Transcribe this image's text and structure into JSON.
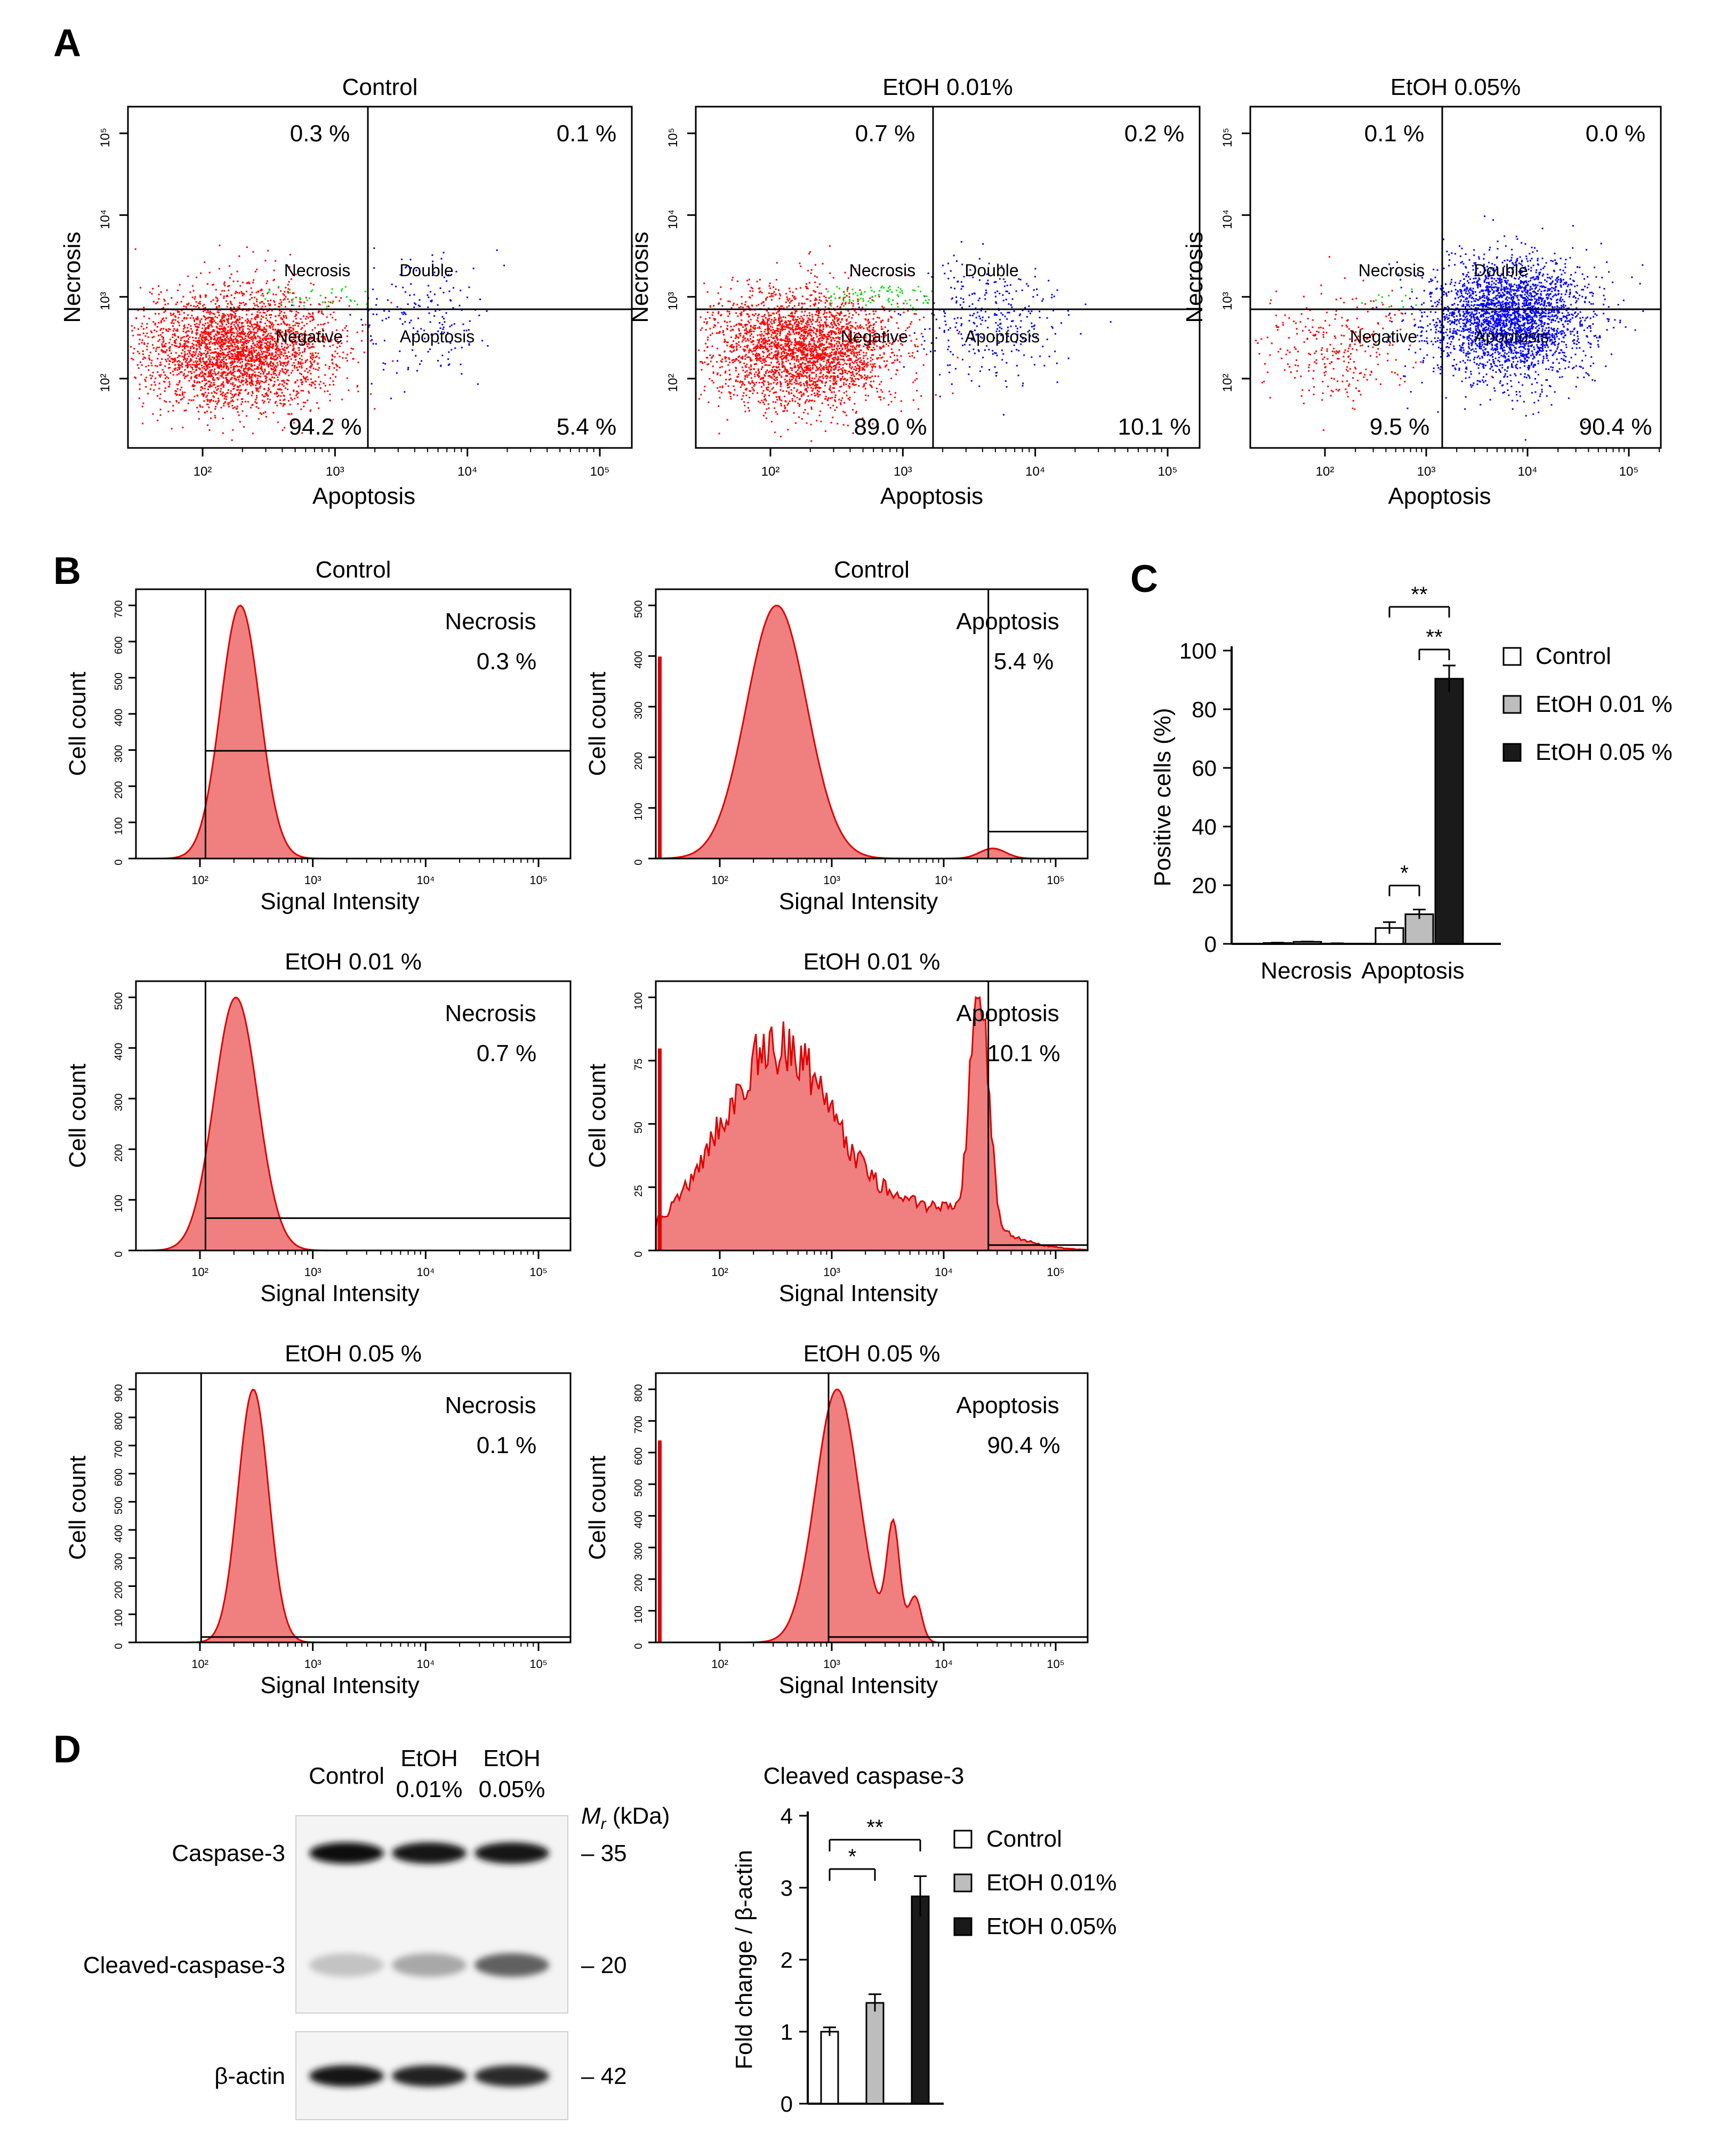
{
  "panel_letters": [
    "A",
    "B",
    "C",
    "D"
  ],
  "colors": {
    "negative": "#ff0000",
    "apoptotic": "#0000ff",
    "necrotic": "#00dd00",
    "histogram_fill": "#f08080",
    "histogram_edge": "#e00000",
    "control_bar": "#ffffff",
    "etoh001_bar": "#bdbdbd",
    "etoh005_bar": "#1a1a1a",
    "axis": "#000000"
  },
  "scatter_panels": [
    {
      "title": "Control",
      "xlabel": "Apoptosis",
      "ylabel": "Necrosis",
      "x_ticks": [
        "10²",
        "10³",
        "10⁴",
        "10⁵"
      ],
      "y_ticks": [
        "10²",
        "10³",
        "10⁴",
        "10⁵"
      ],
      "gate_labels": [
        "Necrosis",
        "Double",
        "Negative",
        "Apoptosis"
      ],
      "quadrants": {
        "upper_left": "0.3 %",
        "upper_right": "0.1 %",
        "lower_left": "94.2 %",
        "lower_right": "5.4 %"
      },
      "quadrant_percent": {
        "necrosis": 0.3,
        "double": 0.1,
        "negative": 94.2,
        "apoptosis": 5.4
      }
    },
    {
      "title": "EtOH 0.01%",
      "xlabel": "Apoptosis",
      "ylabel": "Necrosis",
      "x_ticks": [
        "10²",
        "10³",
        "10⁴",
        "10⁵"
      ],
      "y_ticks": [
        "10²",
        "10³",
        "10⁴",
        "10⁵"
      ],
      "gate_labels": [
        "Necrosis",
        "Double",
        "Negative",
        "Apoptosis"
      ],
      "quadrants": {
        "upper_left": "0.7 %",
        "upper_right": "0.2 %",
        "lower_left": "89.0 %",
        "lower_right": "10.1 %"
      },
      "quadrant_percent": {
        "necrosis": 0.7,
        "double": 0.2,
        "negative": 89.0,
        "apoptosis": 10.1
      }
    },
    {
      "title": "EtOH 0.05%",
      "xlabel": "Apoptosis",
      "ylabel": "Necrosis",
      "x_ticks": [
        "10²",
        "10³",
        "10⁴",
        "10⁵"
      ],
      "y_ticks": [
        "10²",
        "10³",
        "10⁴",
        "10⁵"
      ],
      "gate_labels": [
        "Necrosis",
        "Double",
        "Negative",
        "Apoptosis"
      ],
      "quadrants": {
        "upper_left": "0.1 %",
        "upper_right": "0.0 %",
        "lower_left": "9.5 %",
        "lower_right": "90.4 %"
      },
      "quadrant_percent": {
        "necrosis": 0.1,
        "double": 0.0,
        "negative": 9.5,
        "apoptosis": 90.4
      }
    }
  ],
  "histogram_panels": [
    {
      "title": "Control",
      "gate": "Necrosis",
      "percent": "0.3 %",
      "xlabel": "Signal Intensity",
      "ylabel": "Cell count",
      "y_ticks": [
        "0",
        "100",
        "200",
        "300",
        "400",
        "500",
        "600",
        "700"
      ],
      "x_ticks": [
        "10²",
        "10³",
        "10⁴",
        "10⁵"
      ]
    },
    {
      "title": "Control",
      "gate": "Apoptosis",
      "percent": "5.4 %",
      "xlabel": "Signal Intensity",
      "ylabel": "Cell count",
      "y_ticks": [
        "0",
        "100",
        "200",
        "300",
        "400",
        "500"
      ],
      "x_ticks": [
        "10²",
        "10³",
        "10⁴",
        "10⁵"
      ]
    },
    {
      "title": "EtOH 0.01 %",
      "gate": "Necrosis",
      "percent": "0.7 %",
      "xlabel": "Signal Intensity",
      "ylabel": "Cell count",
      "y_ticks": [
        "0",
        "100",
        "200",
        "300",
        "400",
        "500"
      ],
      "x_ticks": [
        "10²",
        "10³",
        "10⁴",
        "10⁵"
      ]
    },
    {
      "title": "EtOH 0.01 %",
      "gate": "Apoptosis",
      "percent": "10.1 %",
      "xlabel": "Signal Intensity",
      "ylabel": "Cell count",
      "y_ticks": [
        "0",
        "25",
        "50",
        "75",
        "100"
      ],
      "x_ticks": [
        "10²",
        "10³",
        "10⁴",
        "10⁵"
      ]
    },
    {
      "title": "EtOH 0.05 %",
      "gate": "Necrosis",
      "percent": "0.1 %",
      "xlabel": "Signal Intensity",
      "ylabel": "Cell count",
      "y_ticks": [
        "0",
        "100",
        "200",
        "300",
        "400",
        "500",
        "600",
        "700",
        "800",
        "900"
      ],
      "x_ticks": [
        "10²",
        "10³",
        "10⁴",
        "10⁵"
      ]
    },
    {
      "title": "EtOH 0.05 %",
      "gate": "Apoptosis",
      "percent": "90.4 %",
      "xlabel": "Signal Intensity",
      "ylabel": "Cell count",
      "y_ticks": [
        "0",
        "100",
        "200",
        "300",
        "400",
        "500",
        "600",
        "700",
        "800"
      ],
      "x_ticks": [
        "10²",
        "10³",
        "10⁴",
        "10⁵"
      ]
    }
  ],
  "chart_data": [
    {
      "type": "bar",
      "panel": "C",
      "title": "",
      "categories": [
        "Necrosis",
        "Apoptosis"
      ],
      "series": [
        {
          "name": "Control",
          "values": [
            0.3,
            5.4
          ],
          "errors": [
            0.1,
            2.0
          ]
        },
        {
          "name": "EtOH 0.01 %",
          "values": [
            0.7,
            10.1
          ],
          "errors": [
            0.1,
            1.6
          ]
        },
        {
          "name": "EtOH 0.05 %",
          "values": [
            0.1,
            90.4
          ],
          "errors": [
            0.1,
            4.5
          ]
        }
      ],
      "xlabel": "",
      "ylabel": "Positive cells (%)",
      "ylim": [
        0,
        100
      ],
      "y_ticks": [
        "0",
        "20",
        "40",
        "60",
        "80",
        "100"
      ],
      "significance": [
        {
          "category": "Apoptosis",
          "from": 0,
          "to": 1,
          "label": "*"
        },
        {
          "category": "Apoptosis",
          "from": 1,
          "to": 2,
          "label": "**"
        },
        {
          "category": "Apoptosis",
          "from": 0,
          "to": 2,
          "label": "**"
        }
      ],
      "legend": [
        "Control",
        "EtOH 0.01 %",
        "EtOH 0.05 %"
      ]
    },
    {
      "type": "bar",
      "panel": "D",
      "title": "Cleaved caspase-3",
      "categories": [
        "Control",
        "EtOH 0.01%",
        "EtOH 0.05%"
      ],
      "values": [
        1.0,
        1.4,
        2.88
      ],
      "errors": [
        0.06,
        0.12,
        0.28
      ],
      "xlabel": "",
      "ylabel": "Fold change / β-actin",
      "ylim": [
        0,
        4
      ],
      "y_ticks": [
        "0",
        "1",
        "2",
        "3",
        "4"
      ],
      "significance": [
        {
          "from": 0,
          "to": 1,
          "label": "*"
        },
        {
          "from": 0,
          "to": 2,
          "label": "**"
        }
      ],
      "legend": [
        "Control",
        "EtOH 0.01%",
        "EtOH 0.05%"
      ]
    }
  ],
  "western_blot": {
    "lanes": [
      {
        "line1": "Control",
        "line2": ""
      },
      {
        "line1": "EtOH",
        "line2": "0.01%"
      },
      {
        "line1": "EtOH",
        "line2": "0.05%"
      }
    ],
    "mr_label": "M",
    "mr_sub": "r",
    "mr_unit": " (kDa)",
    "rows": [
      {
        "label": "Caspase-3",
        "marker": "– 35",
        "intensity": [
          1.0,
          0.95,
          0.95
        ]
      },
      {
        "label": "Cleaved-caspase-3",
        "marker": "– 20",
        "intensity": [
          0.18,
          0.3,
          0.62
        ]
      },
      {
        "label": "β-actin",
        "marker": "– 42",
        "intensity": [
          0.95,
          0.9,
          0.85
        ]
      }
    ]
  }
}
